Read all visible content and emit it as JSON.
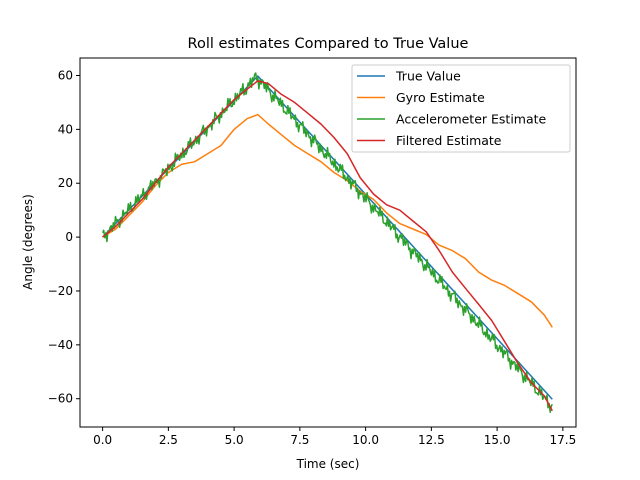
{
  "chart_data": {
    "type": "line",
    "title": "Roll estimates Compared to True Value",
    "xlabel": "Time (sec)",
    "ylabel": "Angle (degrees)",
    "xlim": [
      -0.86,
      18.0
    ],
    "ylim": [
      -70.5,
      66.5
    ],
    "xticks": [
      0.0,
      2.5,
      5.0,
      7.5,
      10.0,
      12.5,
      15.0,
      17.5
    ],
    "xtick_labels": [
      "0.0",
      "2.5",
      "5.0",
      "7.5",
      "10.0",
      "12.5",
      "15.0",
      "17.5"
    ],
    "yticks": [
      -60,
      -40,
      -20,
      0,
      20,
      40,
      60
    ],
    "ytick_labels": [
      "−60",
      "−40",
      "−20",
      "0",
      "20",
      "40",
      "60"
    ],
    "grid": false,
    "legend_position": "upper right",
    "series": [
      {
        "name": "True Value",
        "color": "#1f77b4",
        "x": [
          0.0,
          5.9,
          17.1
        ],
        "y": [
          0.0,
          59.8,
          -60.2
        ]
      },
      {
        "name": "Gyro Estimate",
        "color": "#ff7f0e",
        "x": [
          0.0,
          0.5,
          1.0,
          1.5,
          2.0,
          2.5,
          3.0,
          3.5,
          4.0,
          4.5,
          5.0,
          5.5,
          5.9,
          6.3,
          6.8,
          7.3,
          7.8,
          8.3,
          8.8,
          9.3,
          9.8,
          10.3,
          10.8,
          11.3,
          11.8,
          12.3,
          12.8,
          13.3,
          13.8,
          14.3,
          14.8,
          15.3,
          15.8,
          16.3,
          16.8,
          17.1
        ],
        "y": [
          0.0,
          3.0,
          8.0,
          13.0,
          19.0,
          24.0,
          27.0,
          28.0,
          31.0,
          34.0,
          40.0,
          44.0,
          45.5,
          42.0,
          38.0,
          34.0,
          31.0,
          28.0,
          24.0,
          21.0,
          17.0,
          14.0,
          9.0,
          5.0,
          3.0,
          1.0,
          -3.0,
          -5.0,
          -8.0,
          -13.0,
          -16.0,
          -18.0,
          -21.0,
          -24.0,
          -29.0,
          -33.5
        ]
      },
      {
        "name": "Accelerometer Estimate",
        "color": "#2ca02c",
        "x": [
          0.0,
          5.85,
          17.1
        ],
        "y": [
          0.0,
          59.5,
          -63.0
        ]
      },
      {
        "name": "Filtered Estimate",
        "color": "#d62728",
        "x": [
          0.0,
          0.5,
          1.0,
          1.5,
          2.0,
          2.5,
          3.0,
          3.5,
          4.0,
          4.5,
          5.0,
          5.5,
          5.9,
          6.3,
          6.8,
          7.3,
          7.8,
          8.3,
          8.8,
          9.3,
          9.8,
          10.3,
          10.8,
          11.3,
          11.8,
          12.3,
          12.8,
          13.3,
          13.8,
          14.3,
          14.8,
          15.3,
          15.8,
          16.3,
          16.8,
          17.1
        ],
        "y": [
          0.0,
          4.0,
          9.0,
          14.0,
          20.0,
          26.0,
          31.0,
          36.0,
          41.0,
          46.0,
          51.0,
          55.0,
          58.0,
          57.0,
          53.0,
          50.0,
          46.0,
          42.0,
          37.0,
          31.0,
          22.0,
          16.0,
          12.0,
          10.0,
          6.0,
          2.0,
          -5.0,
          -13.0,
          -19.0,
          -25.0,
          -31.0,
          -39.0,
          -47.0,
          -54.0,
          -59.0,
          -64.5
        ]
      }
    ]
  }
}
